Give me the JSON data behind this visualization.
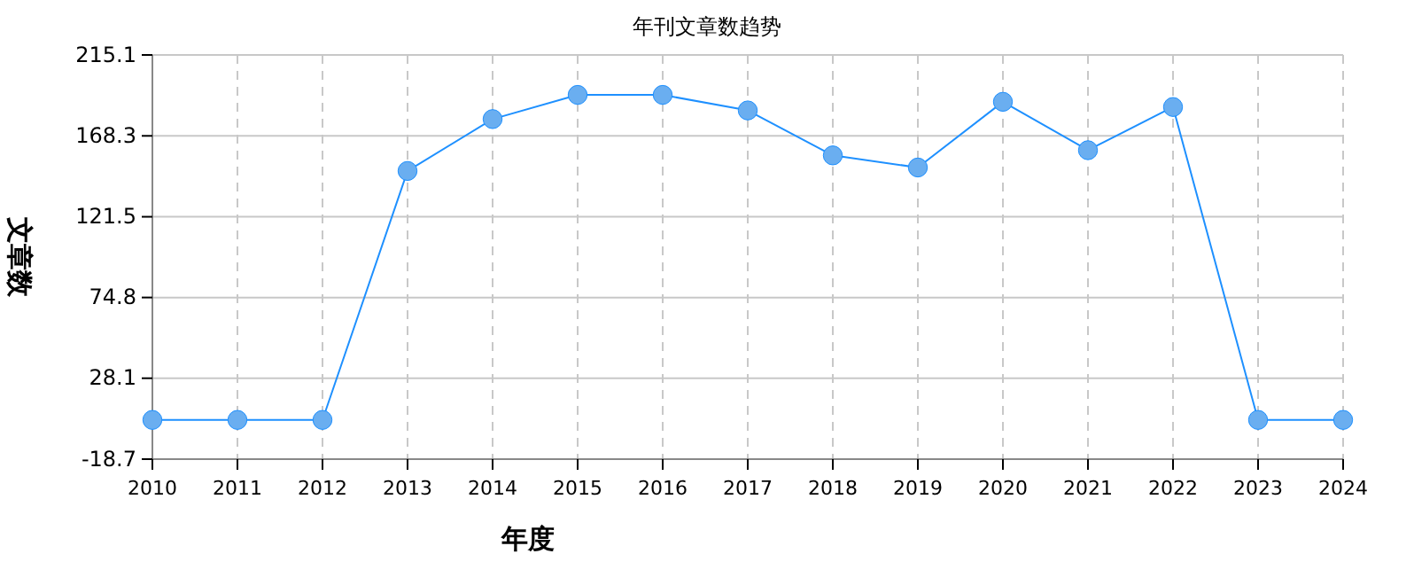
{
  "chart_data": {
    "type": "line",
    "title": "年刊文章数趋势",
    "xlabel": "年度",
    "ylabel": "文章数",
    "categories": [
      "2010",
      "2011",
      "2012",
      "2013",
      "2014",
      "2015",
      "2016",
      "2017",
      "2018",
      "2019",
      "2020",
      "2021",
      "2022",
      "2023",
      "2024"
    ],
    "series": [
      {
        "color": "#1e90ff",
        "values": [
          4,
          4,
          4,
          148,
          178,
          192,
          192,
          183,
          157,
          150,
          188,
          160,
          185,
          4,
          4
        ]
      }
    ],
    "ylim": [
      -18.7,
      215.1
    ],
    "yticks": [
      -18.7,
      28.1,
      74.8,
      121.5,
      168.3,
      215.1
    ],
    "grid": true,
    "marker": "circle",
    "line_style": "solid"
  }
}
